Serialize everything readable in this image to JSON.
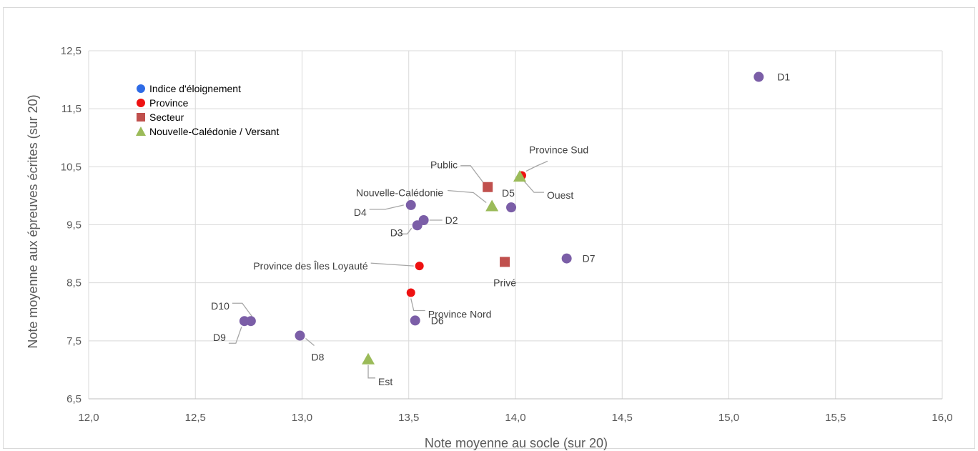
{
  "chart_data": {
    "type": "scatter",
    "title": "",
    "xlabel": "Note moyenne au socle (sur 20)",
    "ylabel": "Note moyenne aux épreuves écrites (sur 20)",
    "xlim": [
      12.0,
      16.0
    ],
    "ylim": [
      6.5,
      12.5
    ],
    "x_ticks": [
      "12,0",
      "12,5",
      "13,0",
      "13,5",
      "14,0",
      "14,5",
      "15,0",
      "15,5",
      "16,0"
    ],
    "y_ticks": [
      "6,5",
      "7,5",
      "8,5",
      "9,5",
      "10,5",
      "11,5",
      "12,5"
    ],
    "grid": true,
    "legend_position": "top-left",
    "series": [
      {
        "name": "Indice d'éloignement",
        "color": "#7b5ea7",
        "legend_color": "#2e6be6",
        "marker": "circle",
        "points": [
          {
            "label": "D1",
            "x": 15.14,
            "y": 12.05
          },
          {
            "label": "D2",
            "x": 13.57,
            "y": 9.58
          },
          {
            "label": "D3",
            "x": 13.54,
            "y": 9.49
          },
          {
            "label": "D4",
            "x": 13.51,
            "y": 9.84
          },
          {
            "label": "D5",
            "x": 13.98,
            "y": 9.8
          },
          {
            "label": "D6",
            "x": 13.53,
            "y": 7.85
          },
          {
            "label": "D7",
            "x": 14.24,
            "y": 8.92
          },
          {
            "label": "D8",
            "x": 12.99,
            "y": 7.59
          },
          {
            "label": "D9",
            "x": 12.73,
            "y": 7.84
          },
          {
            "label": "D10",
            "x": 12.76,
            "y": 7.84
          }
        ]
      },
      {
        "name": "Province",
        "color": "#ee1111",
        "legend_color": "#ee1111",
        "marker": "circle-small",
        "points": [
          {
            "label": "Province Sud",
            "x": 14.03,
            "y": 10.35
          },
          {
            "label": "Province des Îles Loyauté",
            "x": 13.55,
            "y": 8.79
          },
          {
            "label": "Province Nord",
            "x": 13.51,
            "y": 8.33
          }
        ]
      },
      {
        "name": "Secteur",
        "color": "#c0504d",
        "legend_color": "#c0504d",
        "marker": "square",
        "points": [
          {
            "label": "Public",
            "x": 13.87,
            "y": 10.15
          },
          {
            "label": "Privé",
            "x": 13.95,
            "y": 8.86
          }
        ]
      },
      {
        "name": "Nouvelle-Calédonie / Versant",
        "color": "#9bbb59",
        "legend_color": "#9bbb59",
        "marker": "triangle",
        "points": [
          {
            "label": "Nouvelle-Calédonie",
            "x": 13.89,
            "y": 9.82
          },
          {
            "label": "Ouest",
            "x": 14.02,
            "y": 10.33
          },
          {
            "label": "Est",
            "x": 13.31,
            "y": 7.18
          }
        ]
      }
    ]
  }
}
